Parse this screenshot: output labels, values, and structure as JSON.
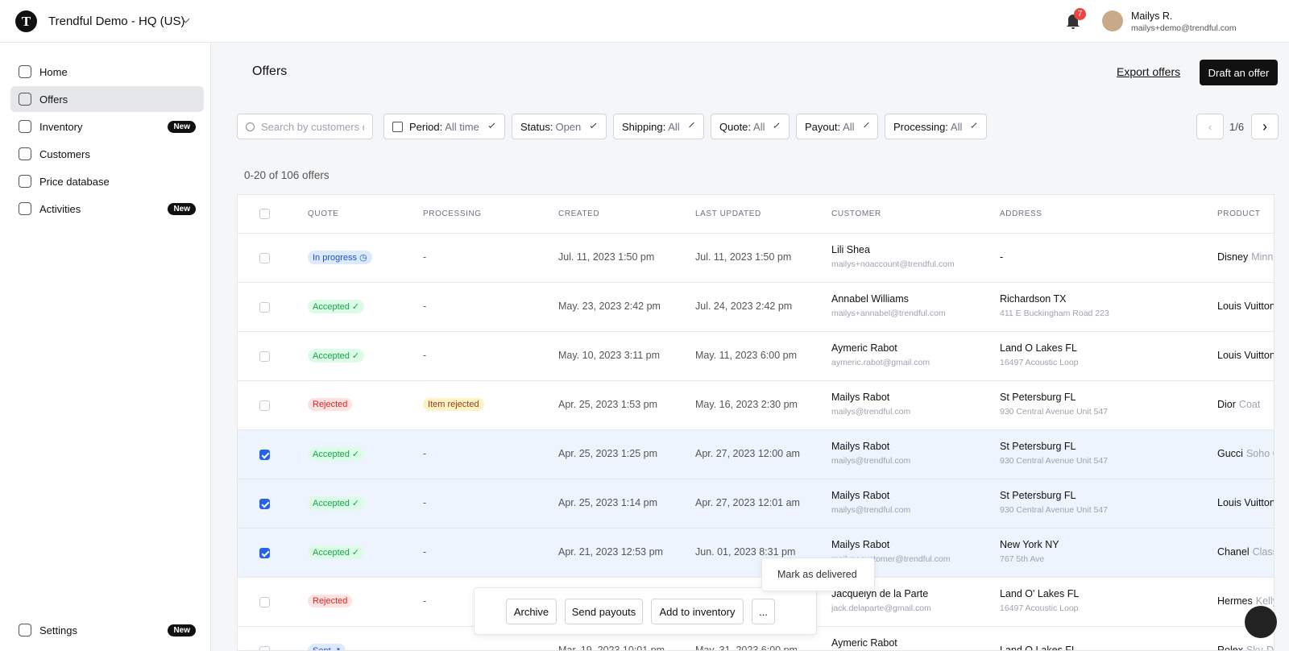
{
  "header": {
    "logo": "T",
    "org": "Trendful Demo - HQ (US)",
    "notifications": "7",
    "user_name": "Mailys R.",
    "user_email": "mailys+demo@trendful.com"
  },
  "sidebar": {
    "nav": [
      {
        "label": "Home"
      },
      {
        "label": "Offers",
        "active": true
      },
      {
        "label": "Inventory",
        "badge": "New"
      },
      {
        "label": "Customers"
      },
      {
        "label": "Price database"
      },
      {
        "label": "Activities",
        "badge": "New"
      }
    ],
    "footer": {
      "label": "Settings",
      "badge": "New"
    }
  },
  "page": {
    "title": "Offers",
    "export": "Export offers",
    "draft": "Draft an offer",
    "search_placeholder": "Search by customers or",
    "filters": [
      {
        "label": "Period:",
        "value": "All time"
      },
      {
        "label": "Status:",
        "value": "Open"
      },
      {
        "label": "Shipping:",
        "value": "All"
      },
      {
        "label": "Quote:",
        "value": "All"
      },
      {
        "label": "Payout:",
        "value": "All"
      },
      {
        "label": "Processing:",
        "value": "All"
      }
    ],
    "pagination": "1/6",
    "count": "0-20 of 106 offers"
  },
  "table": {
    "columns": [
      "QUOTE",
      "PROCESSING",
      "CREATED",
      "LAST UPDATED",
      "CUSTOMER",
      "ADDRESS",
      "PRODUCT"
    ],
    "rows": [
      {
        "quote": "In progress ◷",
        "quote_color": "blue",
        "processing": "-",
        "created": "Jul. 11, 2023 1:50 pm",
        "updated": "Jul. 11, 2023 1:50 pm",
        "customer": "Lili Shea",
        "email": "mailys+noaccount@trendful.com",
        "address": "-",
        "brand": "Disney",
        "model": "Minni"
      },
      {
        "quote": "Accepted ✓",
        "quote_color": "green",
        "processing": "-",
        "created": "May. 23, 2023 2:42 pm",
        "updated": "Jul. 24, 2023 2:42 pm",
        "customer": "Annabel Williams",
        "email": "mailys+annabel@trendful.com",
        "address": "Richardson TX",
        "address_detail": "411 E Buckingham Road 223",
        "brand": "Louis Vuitton"
      },
      {
        "quote": "Accepted ✓",
        "quote_color": "green",
        "processing": "-",
        "created": "May. 10, 2023 3:11 pm",
        "updated": "May. 11, 2023 6:00 pm",
        "customer": "Aymeric Rabot",
        "email": "aymeric.rabot@gmail.com",
        "address": "Land O Lakes FL",
        "address_detail": "16497 Acoustic Loop",
        "brand": "Louis Vuitton"
      },
      {
        "quote": "Rejected",
        "quote_color": "red",
        "processing": "Item rejected",
        "processing_color": "yellow",
        "created": "Apr. 25, 2023 1:53 pm",
        "updated": "May. 16, 2023 2:30 pm",
        "customer": "Mailys Rabot",
        "email": "mailys@trendful.com",
        "address": "St Petersburg FL",
        "address_detail": "930 Central Avenue Unit 547",
        "brand": "Dior",
        "model": "Coat"
      },
      {
        "selected": true,
        "quote": "Accepted ✓",
        "quote_color": "green",
        "processing": "-",
        "created": "Apr. 25, 2023 1:25 pm",
        "updated": "Apr. 27, 2023 12:00 am",
        "customer": "Mailys Rabot",
        "email": "mailys@trendful.com",
        "address": "St Petersburg FL",
        "address_detail": "930 Central Avenue Unit 547",
        "brand": "Gucci",
        "model": "Soho C"
      },
      {
        "selected": true,
        "quote": "Accepted ✓",
        "quote_color": "green",
        "processing": "-",
        "created": "Apr. 25, 2023 1:14 pm",
        "updated": "Apr. 27, 2023 12:01 am",
        "customer": "Mailys Rabot",
        "email": "mailys@trendful.com",
        "address": "St Petersburg FL",
        "address_detail": "930 Central Avenue Unit 547",
        "brand": "Louis Vuitton"
      },
      {
        "selected": true,
        "quote": "Accepted ✓",
        "quote_color": "green",
        "processing": "-",
        "created": "Apr. 21, 2023 12:53 pm",
        "updated": "Jun. 01, 2023 8:31 pm",
        "customer": "Mailys Rabot",
        "email": "mailys+customer@trendful.com",
        "address": "New York NY",
        "address_detail": "767 5th Ave",
        "brand": "Chanel",
        "model": "Class"
      },
      {
        "quote": "Rejected",
        "quote_color": "red",
        "processing": "-",
        "customer": "Jacquelyn de la Parte",
        "email": "jack.delaparte@gmail.com",
        "address": "Land O' Lakes FL",
        "address_detail": "16497 Acoustic Loop",
        "brand": "Hermes",
        "model": "Kelly"
      },
      {
        "quote": "Sent ↗",
        "quote_color": "blue",
        "processing": "-",
        "created": "Mar. 19, 2023 10:01 pm",
        "updated": "May. 31, 2023 6:00 pm",
        "customer": "Aymeric Rabot",
        "address": "Land O Lakes FL",
        "brand": "Rolex",
        "model": "Sky-D"
      }
    ]
  },
  "bulk_actions": {
    "buttons": [
      "Archive",
      "Send payouts",
      "Add to inventory",
      "..."
    ],
    "menu": [
      "Mark as delivered"
    ]
  }
}
